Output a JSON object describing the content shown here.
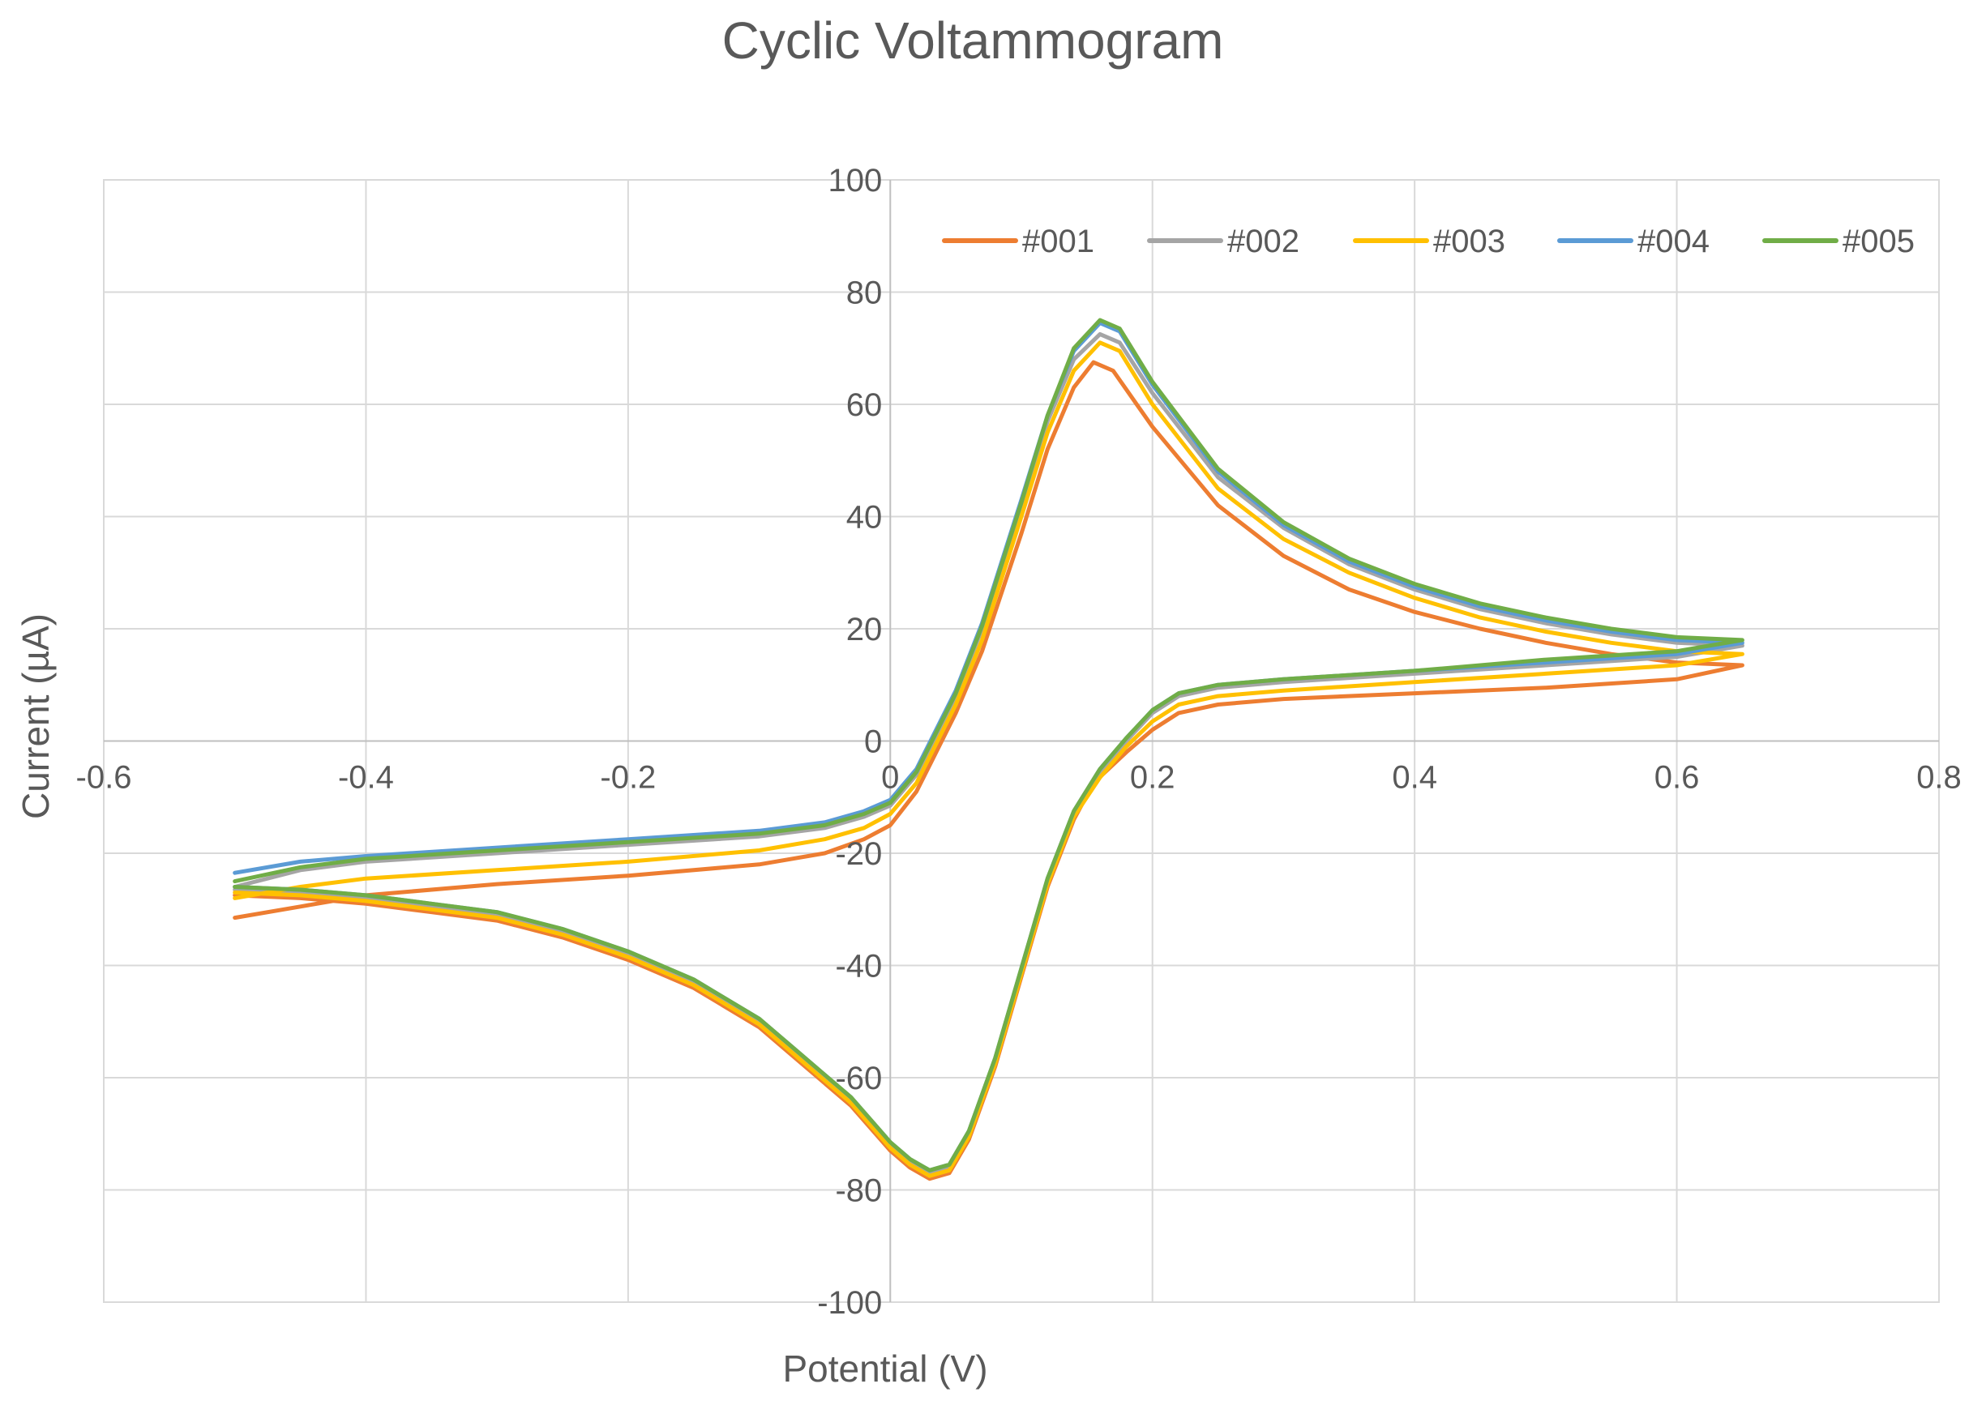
{
  "chart_data": {
    "type": "line",
    "title": "Cyclic Voltammogram",
    "xlabel": "Potential (V)",
    "ylabel": "Current (µA)",
    "xlim": [
      -0.6,
      0.8
    ],
    "ylim": [
      -100,
      100
    ],
    "x_ticks": [
      -0.6,
      -0.4,
      -0.2,
      0,
      0.2,
      0.4,
      0.6,
      0.8
    ],
    "x_tick_labels": [
      "-0.6",
      "-0.4",
      "-0.2",
      "0",
      "0.2",
      "0.4",
      "0.6",
      "0.8"
    ],
    "y_ticks": [
      -100,
      -80,
      -60,
      -40,
      -20,
      0,
      20,
      40,
      60,
      80,
      100
    ],
    "y_tick_labels": [
      "-100",
      "-80",
      "-60",
      "-40",
      "-20",
      "0",
      "20",
      "40",
      "60",
      "80",
      "100"
    ],
    "grid": true,
    "legend_position": "top-right",
    "series": [
      {
        "name": "#001",
        "color": "#ED7D31",
        "points": [
          [
            -0.5,
            -31.5
          ],
          [
            -0.45,
            -29.5
          ],
          [
            -0.4,
            -27.5
          ],
          [
            -0.3,
            -25.5
          ],
          [
            -0.2,
            -24
          ],
          [
            -0.1,
            -22
          ],
          [
            -0.05,
            -20
          ],
          [
            -0.02,
            -17.5
          ],
          [
            0,
            -15
          ],
          [
            0.02,
            -9
          ],
          [
            0.05,
            5
          ],
          [
            0.07,
            16
          ],
          [
            0.1,
            37
          ],
          [
            0.12,
            52
          ],
          [
            0.14,
            63
          ],
          [
            0.155,
            67.5
          ],
          [
            0.17,
            66
          ],
          [
            0.2,
            56
          ],
          [
            0.25,
            42
          ],
          [
            0.3,
            33
          ],
          [
            0.35,
            27
          ],
          [
            0.4,
            23
          ],
          [
            0.45,
            20
          ],
          [
            0.5,
            17.5
          ],
          [
            0.55,
            15.5
          ],
          [
            0.6,
            14
          ],
          [
            0.65,
            13.5
          ],
          [
            0.6,
            11
          ],
          [
            0.5,
            9.5
          ],
          [
            0.4,
            8.5
          ],
          [
            0.3,
            7.5
          ],
          [
            0.25,
            6.5
          ],
          [
            0.22,
            5
          ],
          [
            0.2,
            2
          ],
          [
            0.18,
            -2
          ],
          [
            0.155,
            -7.5
          ],
          [
            0.14,
            -14
          ],
          [
            0.12,
            -26
          ],
          [
            0.1,
            -42
          ],
          [
            0.08,
            -58
          ],
          [
            0.06,
            -71
          ],
          [
            0.045,
            -77
          ],
          [
            0.03,
            -78
          ],
          [
            0.015,
            -76
          ],
          [
            0,
            -73
          ],
          [
            -0.03,
            -65
          ],
          [
            -0.07,
            -57
          ],
          [
            -0.1,
            -51
          ],
          [
            -0.15,
            -44
          ],
          [
            -0.2,
            -39
          ],
          [
            -0.25,
            -35
          ],
          [
            -0.3,
            -32
          ],
          [
            -0.35,
            -30.5
          ],
          [
            -0.4,
            -29
          ],
          [
            -0.45,
            -28
          ],
          [
            -0.5,
            -27.5
          ]
        ]
      },
      {
        "name": "#002",
        "color": "#A5A5A5",
        "points": [
          [
            -0.5,
            -26
          ],
          [
            -0.45,
            -23
          ],
          [
            -0.4,
            -21.5
          ],
          [
            -0.3,
            -20
          ],
          [
            -0.2,
            -18.5
          ],
          [
            -0.1,
            -17
          ],
          [
            -0.05,
            -15.5
          ],
          [
            -0.02,
            -13.5
          ],
          [
            0,
            -11.5
          ],
          [
            0.02,
            -6
          ],
          [
            0.05,
            8
          ],
          [
            0.07,
            20
          ],
          [
            0.1,
            42
          ],
          [
            0.12,
            57
          ],
          [
            0.14,
            68
          ],
          [
            0.16,
            72.5
          ],
          [
            0.175,
            71
          ],
          [
            0.2,
            62
          ],
          [
            0.25,
            47
          ],
          [
            0.3,
            38
          ],
          [
            0.35,
            31.5
          ],
          [
            0.4,
            27
          ],
          [
            0.45,
            23.5
          ],
          [
            0.5,
            21
          ],
          [
            0.55,
            19
          ],
          [
            0.6,
            17.5
          ],
          [
            0.65,
            17
          ],
          [
            0.6,
            15
          ],
          [
            0.5,
            13.5
          ],
          [
            0.4,
            12
          ],
          [
            0.3,
            10.5
          ],
          [
            0.25,
            9.5
          ],
          [
            0.22,
            8
          ],
          [
            0.2,
            5
          ],
          [
            0.18,
            0
          ],
          [
            0.16,
            -5.5
          ],
          [
            0.14,
            -13
          ],
          [
            0.12,
            -25
          ],
          [
            0.1,
            -41
          ],
          [
            0.08,
            -57
          ],
          [
            0.06,
            -70
          ],
          [
            0.045,
            -76
          ],
          [
            0.03,
            -77
          ],
          [
            0.015,
            -75
          ],
          [
            0,
            -72
          ],
          [
            -0.03,
            -64
          ],
          [
            -0.07,
            -56
          ],
          [
            -0.1,
            -50
          ],
          [
            -0.15,
            -43
          ],
          [
            -0.2,
            -38
          ],
          [
            -0.25,
            -34
          ],
          [
            -0.3,
            -31
          ],
          [
            -0.35,
            -29.5
          ],
          [
            -0.4,
            -28
          ],
          [
            -0.45,
            -27
          ],
          [
            -0.5,
            -26.5
          ]
        ]
      },
      {
        "name": "#003",
        "color": "#FFC000",
        "points": [
          [
            -0.5,
            -28
          ],
          [
            -0.45,
            -26
          ],
          [
            -0.4,
            -24.5
          ],
          [
            -0.3,
            -23
          ],
          [
            -0.2,
            -21.5
          ],
          [
            -0.1,
            -19.5
          ],
          [
            -0.05,
            -17.5
          ],
          [
            -0.02,
            -15.5
          ],
          [
            0,
            -13
          ],
          [
            0.02,
            -7.5
          ],
          [
            0.05,
            6.5
          ],
          [
            0.07,
            18
          ],
          [
            0.1,
            40
          ],
          [
            0.12,
            55
          ],
          [
            0.14,
            66
          ],
          [
            0.16,
            71
          ],
          [
            0.175,
            69.5
          ],
          [
            0.2,
            60
          ],
          [
            0.25,
            45
          ],
          [
            0.3,
            36
          ],
          [
            0.35,
            30
          ],
          [
            0.4,
            25.5
          ],
          [
            0.45,
            22
          ],
          [
            0.5,
            19.5
          ],
          [
            0.55,
            17.5
          ],
          [
            0.6,
            16
          ],
          [
            0.65,
            15.5
          ],
          [
            0.6,
            13.5
          ],
          [
            0.5,
            12
          ],
          [
            0.4,
            10.5
          ],
          [
            0.3,
            9
          ],
          [
            0.25,
            8
          ],
          [
            0.22,
            6.5
          ],
          [
            0.2,
            3.5
          ],
          [
            0.18,
            -1
          ],
          [
            0.16,
            -6.5
          ],
          [
            0.14,
            -13.5
          ],
          [
            0.12,
            -25.5
          ],
          [
            0.1,
            -41.5
          ],
          [
            0.08,
            -57.5
          ],
          [
            0.06,
            -70.5
          ],
          [
            0.045,
            -76.5
          ],
          [
            0.03,
            -77.5
          ],
          [
            0.015,
            -75.5
          ],
          [
            0,
            -72.5
          ],
          [
            -0.03,
            -64.5
          ],
          [
            -0.07,
            -56.5
          ],
          [
            -0.1,
            -50.5
          ],
          [
            -0.15,
            -43.5
          ],
          [
            -0.2,
            -38.5
          ],
          [
            -0.25,
            -34.5
          ],
          [
            -0.3,
            -31.5
          ],
          [
            -0.35,
            -30
          ],
          [
            -0.4,
            -28.5
          ],
          [
            -0.45,
            -27.5
          ],
          [
            -0.5,
            -27
          ]
        ]
      },
      {
        "name": "#004",
        "color": "#5B9BD5",
        "points": [
          [
            -0.5,
            -23.5
          ],
          [
            -0.45,
            -21.5
          ],
          [
            -0.4,
            -20.5
          ],
          [
            -0.3,
            -19
          ],
          [
            -0.2,
            -17.5
          ],
          [
            -0.1,
            -16
          ],
          [
            -0.05,
            -14.5
          ],
          [
            -0.02,
            -12.5
          ],
          [
            0,
            -10.5
          ],
          [
            0.02,
            -5
          ],
          [
            0.05,
            9
          ],
          [
            0.07,
            21
          ],
          [
            0.1,
            43
          ],
          [
            0.12,
            58
          ],
          [
            0.14,
            69.5
          ],
          [
            0.16,
            74.5
          ],
          [
            0.175,
            73
          ],
          [
            0.2,
            63.5
          ],
          [
            0.25,
            48
          ],
          [
            0.3,
            38.5
          ],
          [
            0.35,
            32
          ],
          [
            0.4,
            27.5
          ],
          [
            0.45,
            24
          ],
          [
            0.5,
            21.5
          ],
          [
            0.55,
            19.5
          ],
          [
            0.6,
            18
          ],
          [
            0.65,
            17.5
          ],
          [
            0.6,
            15.5
          ],
          [
            0.5,
            14
          ],
          [
            0.4,
            12.5
          ],
          [
            0.3,
            11
          ],
          [
            0.25,
            10
          ],
          [
            0.22,
            8.5
          ],
          [
            0.2,
            5.5
          ],
          [
            0.18,
            0.5
          ],
          [
            0.16,
            -5
          ],
          [
            0.14,
            -12.5
          ],
          [
            0.12,
            -24.5
          ],
          [
            0.1,
            -40.5
          ],
          [
            0.08,
            -56.5
          ],
          [
            0.06,
            -69.5
          ],
          [
            0.045,
            -75.5
          ],
          [
            0.03,
            -76.5
          ],
          [
            0.015,
            -74.5
          ],
          [
            0,
            -71.5
          ],
          [
            -0.03,
            -63.5
          ],
          [
            -0.07,
            -55.5
          ],
          [
            -0.1,
            -49.5
          ],
          [
            -0.15,
            -42.5
          ],
          [
            -0.2,
            -37.5
          ],
          [
            -0.25,
            -33.5
          ],
          [
            -0.3,
            -30.5
          ],
          [
            -0.35,
            -29
          ],
          [
            -0.4,
            -27.5
          ],
          [
            -0.45,
            -26.5
          ],
          [
            -0.5,
            -26
          ]
        ]
      },
      {
        "name": "#005",
        "color": "#70AD47",
        "points": [
          [
            -0.5,
            -25
          ],
          [
            -0.45,
            -22.5
          ],
          [
            -0.4,
            -21
          ],
          [
            -0.3,
            -19.5
          ],
          [
            -0.2,
            -18
          ],
          [
            -0.1,
            -16.5
          ],
          [
            -0.05,
            -15
          ],
          [
            -0.02,
            -13
          ],
          [
            0,
            -11
          ],
          [
            0.02,
            -5.5
          ],
          [
            0.05,
            8.5
          ],
          [
            0.07,
            20.5
          ],
          [
            0.1,
            42.5
          ],
          [
            0.12,
            58
          ],
          [
            0.14,
            70
          ],
          [
            0.16,
            75
          ],
          [
            0.175,
            73.5
          ],
          [
            0.2,
            64
          ],
          [
            0.25,
            48.5
          ],
          [
            0.3,
            39
          ],
          [
            0.35,
            32.5
          ],
          [
            0.4,
            28
          ],
          [
            0.45,
            24.5
          ],
          [
            0.5,
            22
          ],
          [
            0.55,
            20
          ],
          [
            0.6,
            18.5
          ],
          [
            0.65,
            18
          ],
          [
            0.6,
            16
          ],
          [
            0.5,
            14.5
          ],
          [
            0.4,
            12.5
          ],
          [
            0.3,
            11
          ],
          [
            0.25,
            10
          ],
          [
            0.22,
            8.5
          ],
          [
            0.2,
            5.5
          ],
          [
            0.18,
            0.5
          ],
          [
            0.16,
            -5
          ],
          [
            0.14,
            -12.5
          ],
          [
            0.12,
            -24.5
          ],
          [
            0.1,
            -40.5
          ],
          [
            0.08,
            -56.5
          ],
          [
            0.06,
            -69.5
          ],
          [
            0.045,
            -75.5
          ],
          [
            0.03,
            -76.5
          ],
          [
            0.015,
            -74.5
          ],
          [
            0,
            -71.5
          ],
          [
            -0.03,
            -63.5
          ],
          [
            -0.07,
            -55.5
          ],
          [
            -0.1,
            -49.5
          ],
          [
            -0.15,
            -42.5
          ],
          [
            -0.2,
            -37.5
          ],
          [
            -0.25,
            -33.5
          ],
          [
            -0.3,
            -30.5
          ],
          [
            -0.35,
            -29
          ],
          [
            -0.4,
            -27.5
          ],
          [
            -0.45,
            -26.5
          ],
          [
            -0.5,
            -26
          ]
        ]
      }
    ]
  }
}
